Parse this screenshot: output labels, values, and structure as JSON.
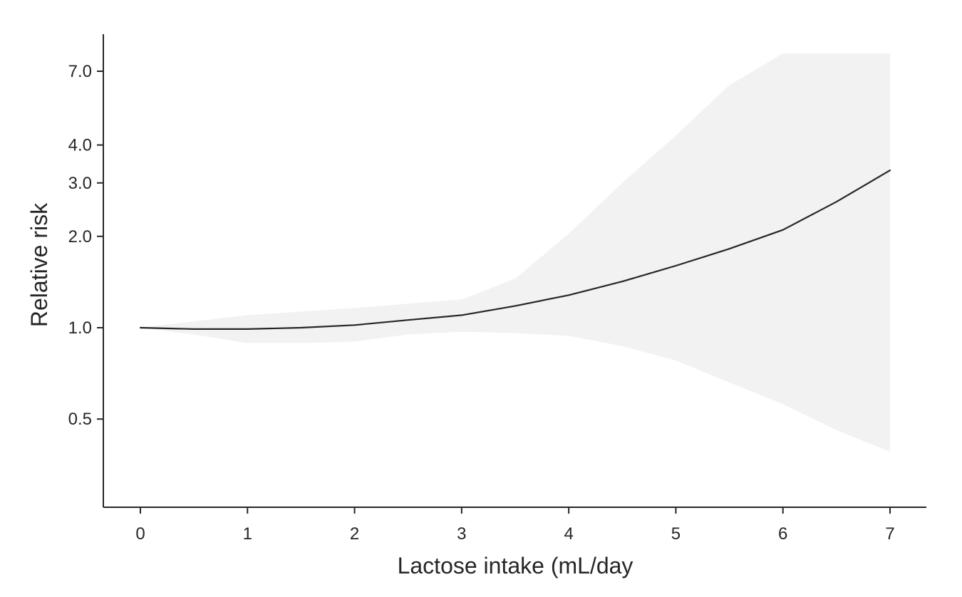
{
  "chart_data": {
    "type": "line",
    "title": "",
    "xlabel": "Lactose intake (mL/day",
    "ylabel": "Relative risk",
    "y_scale": "log",
    "grid": false,
    "legend": "none",
    "xlim": [
      -0.35,
      7.35
    ],
    "ylim": [
      0.26,
      8.1
    ],
    "x_ticks": [
      0,
      1,
      2,
      3,
      4,
      5,
      6,
      7
    ],
    "x_tick_labels": [
      "0",
      "1",
      "2",
      "3",
      "4",
      "5",
      "6",
      "7"
    ],
    "y_ticks": [
      0.5,
      1.0,
      2.0,
      3.0,
      4.0,
      7.0
    ],
    "y_tick_labels": [
      "0.5",
      "1.0",
      "2.0",
      "3.0",
      "4.0",
      "7.0"
    ],
    "series": [
      {
        "x": [
          0,
          0.5,
          1,
          1.5,
          2,
          2.5,
          3,
          3.5,
          4,
          4.5,
          5,
          5.5,
          6,
          6.5,
          7
        ],
        "y": [
          1.0,
          0.99,
          0.99,
          1.0,
          1.02,
          1.06,
          1.1,
          1.18,
          1.28,
          1.42,
          1.6,
          1.82,
          2.1,
          2.6,
          3.3
        ]
      }
    ],
    "confidence_band": {
      "x": [
        0,
        0.5,
        1,
        1.5,
        2,
        2.5,
        3,
        3.5,
        4,
        4.5,
        5,
        5.5,
        6,
        6.5,
        7
      ],
      "lower": [
        1.0,
        0.95,
        0.89,
        0.89,
        0.9,
        0.95,
        0.97,
        0.96,
        0.94,
        0.87,
        0.78,
        0.66,
        0.56,
        0.46,
        0.39
      ],
      "upper": [
        1.0,
        1.05,
        1.1,
        1.13,
        1.16,
        1.2,
        1.24,
        1.45,
        2.04,
        3.0,
        4.3,
        6.3,
        8.1,
        8.1,
        8.1
      ]
    },
    "colors": {
      "line": "#262626",
      "band": "#f2f2f2",
      "axis": "#262626"
    }
  }
}
